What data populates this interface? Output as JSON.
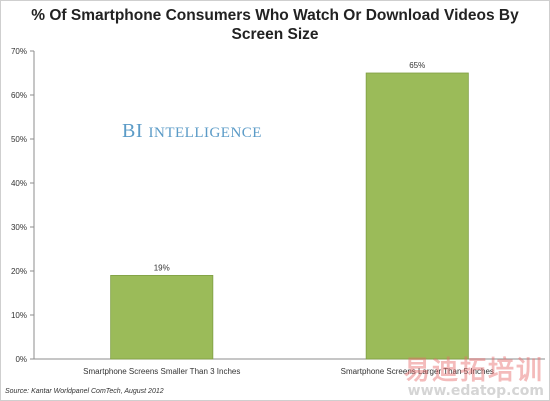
{
  "chart_data": {
    "type": "bar",
    "title": "% Of Smartphone Consumers Who Watch Or Download Videos By Screen Size",
    "categories": [
      "Smartphone Screens Smaller Than 3 Inches",
      "Smartphone Screens Larger Than 5 Inches"
    ],
    "values": [
      19,
      65
    ],
    "data_labels": [
      "19%",
      "65%"
    ],
    "ylim": [
      0,
      70
    ],
    "yticks": [
      "0%",
      "10%",
      "20%",
      "30%",
      "40%",
      "50%",
      "60%",
      "70%"
    ],
    "xlabel": "",
    "ylabel": "",
    "grid": false,
    "legend": "none",
    "bar_color": "#9bbb59",
    "bar_edge_color": "#7f9e43"
  },
  "watermark": {
    "brand": "BI",
    "name": "Intelligence"
  },
  "source": "Source: Kantar Worldpanel ComTech, August 2012",
  "stamp": {
    "chinese": "易迪拓培训",
    "url": "www.edatop.com"
  }
}
